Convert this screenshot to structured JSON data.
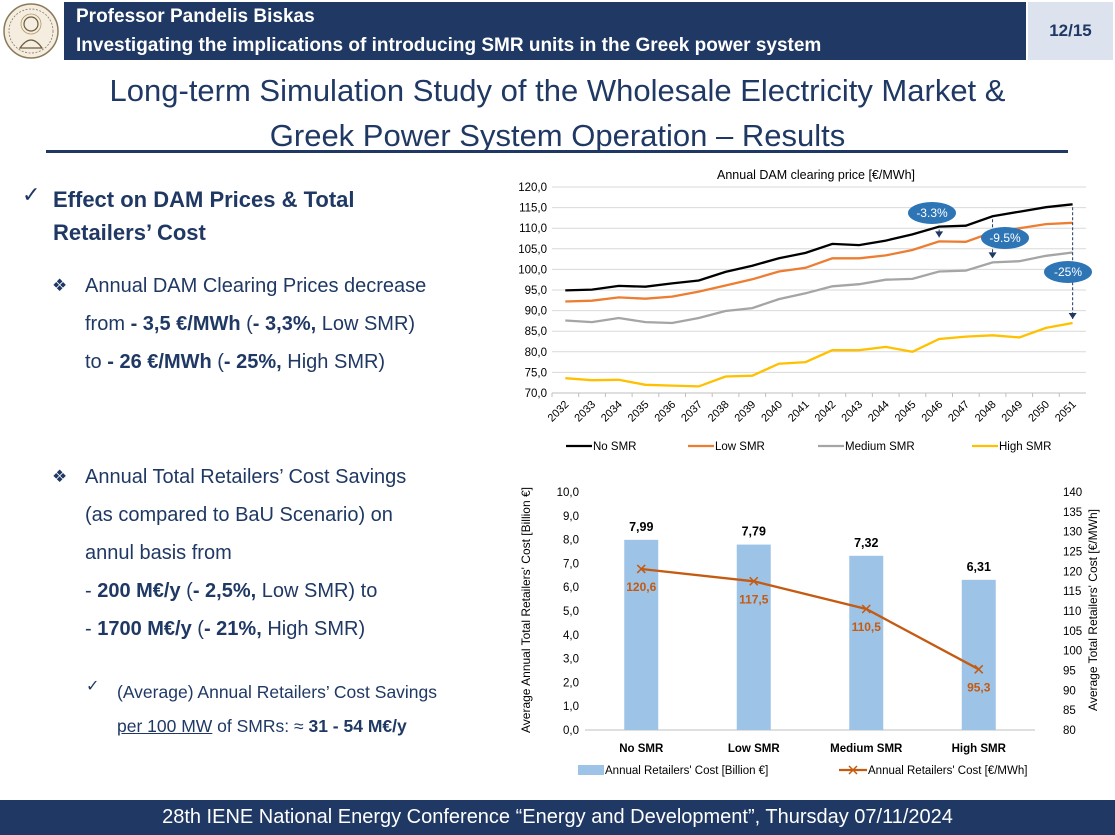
{
  "header": {
    "professor": "Professor Pandelis Biskas",
    "project": "Investigating the implications of introducing SMR units in the Greek power system",
    "page": "12/15"
  },
  "slide": {
    "title_line1": "Long-term Simulation Study of the Wholesale Electricity Market &",
    "title_line2": "Greek Power System Operation – Results"
  },
  "left": {
    "heading_line1": "Effect on DAM Prices & Total",
    "heading_line2": "Retailers’ Cost",
    "check_icon": "check-icon",
    "bullet_icon": "diamond-bullet-icon",
    "b1": {
      "l1": "Annual DAM Clearing Prices decrease",
      "l2_a": "from ",
      "l2_b": "- 3,5 €/MWh",
      "l2_c": " (",
      "l2_d": "- 3,3%,",
      "l2_e": " Low SMR)",
      "l3_a": "to ",
      "l3_b": "- 26 €/MWh",
      "l3_c": " (",
      "l3_d": "- 25%,",
      "l3_e": " High SMR)"
    },
    "b2": {
      "l1": "Annual Total Retailers’ Cost Savings",
      "l2": "(as compared to BaU Scenario) on",
      "l3": "annul basis from",
      "l4_a": "- ",
      "l4_b": "200 M€/y",
      "l4_c": " (",
      "l4_d": "- 2,5%,",
      "l4_e": " Low SMR) to",
      "l5_a": "- ",
      "l5_b": "1700 M€/y",
      "l5_c": " (",
      "l5_d": "- 21%,",
      "l5_e": " High SMR)"
    },
    "sub": {
      "l1": "(Average) Annual Retailers’ Cost Savings",
      "l2_a": "per 100 MW",
      "l2_b": " of SMRs: ≈ ",
      "l2_c": "31 - 54 M€/y"
    }
  },
  "footer": {
    "text": "28th IENE National Energy Conference “Energy and Development”, Thursday 07/11/2024"
  },
  "chart_data": [
    {
      "type": "line",
      "title": "Annual DAM clearing price [€/MWh]",
      "xlabel": "",
      "ylabel": "",
      "x": [
        "2032",
        "2033",
        "2034",
        "2035",
        "2036",
        "2037",
        "2038",
        "2039",
        "2040",
        "2041",
        "2042",
        "2043",
        "2044",
        "2045",
        "2046",
        "2047",
        "2048",
        "2049",
        "2050",
        "2051"
      ],
      "ylim": [
        70,
        120
      ],
      "ytick_labels": [
        "70,0",
        "75,0",
        "80,0",
        "85,0",
        "90,0",
        "95,0",
        "100,0",
        "105,0",
        "110,0",
        "115,0",
        "120,0"
      ],
      "series": [
        {
          "name": "No SMR",
          "color": "#000000",
          "values": [
            94.9,
            95.1,
            96.0,
            95.8,
            96.6,
            97.3,
            99.4,
            100.9,
            102.7,
            104.0,
            106.2,
            105.9,
            107.0,
            108.5,
            110.4,
            110.6,
            112.9,
            114.0,
            115.1,
            115.8
          ]
        },
        {
          "name": "Low SMR",
          "color": "#ed7d31",
          "values": [
            92.2,
            92.4,
            93.2,
            92.9,
            93.4,
            94.6,
            96.1,
            97.6,
            99.5,
            100.4,
            102.7,
            102.7,
            103.4,
            104.7,
            106.8,
            106.7,
            109.0,
            110.0,
            111.0,
            111.3
          ]
        },
        {
          "name": "Medium SMR",
          "color": "#a5a5a5",
          "values": [
            87.6,
            87.2,
            88.2,
            87.2,
            87.0,
            88.2,
            89.9,
            90.6,
            92.8,
            94.2,
            95.9,
            96.4,
            97.5,
            97.7,
            99.5,
            99.7,
            101.7,
            102.0,
            103.3,
            104.1
          ]
        },
        {
          "name": "High SMR",
          "color": "#ffc000",
          "values": [
            73.6,
            73.1,
            73.2,
            72.0,
            71.8,
            71.6,
            74.0,
            74.2,
            77.1,
            77.5,
            80.4,
            80.4,
            81.2,
            80.0,
            83.1,
            83.7,
            84.0,
            83.5,
            85.8,
            87.0
          ]
        }
      ],
      "annotations": [
        "-3.3%",
        "-9.5%",
        "-25%"
      ]
    },
    {
      "type": "bar",
      "title": "",
      "categories": [
        "No SMR",
        "Low SMR",
        "Medium SMR",
        "High SMR"
      ],
      "ylabel": "Average Annual Total Retailers' Cost [Billion €]",
      "y2label": "Average Total Retailers' Cost [€/MWh]",
      "ylim": [
        0,
        10
      ],
      "y2lim": [
        80,
        140
      ],
      "ytick_labels": [
        "0,0",
        "1,0",
        "2,0",
        "3,0",
        "4,0",
        "5,0",
        "6,0",
        "7,0",
        "8,0",
        "9,0",
        "10,0"
      ],
      "y2tick_labels": [
        "80",
        "85",
        "90",
        "95",
        "100",
        "105",
        "110",
        "115",
        "120",
        "125",
        "130",
        "135",
        "140"
      ],
      "series": [
        {
          "name": "Annual Retailers' Cost [Billion €]",
          "color": "#9dc3e6",
          "values": [
            7.99,
            7.79,
            7.32,
            6.31
          ],
          "labels": [
            "7,99",
            "7,79",
            "7,32",
            "6,31"
          ]
        },
        {
          "name": "Annual Retailers' Cost [€/MWh]",
          "color": "#c55a11",
          "axis": "right",
          "values": [
            120.6,
            117.5,
            110.5,
            95.3
          ],
          "labels": [
            "120,6",
            "117,5",
            "110,5",
            "95,3"
          ]
        }
      ]
    }
  ]
}
